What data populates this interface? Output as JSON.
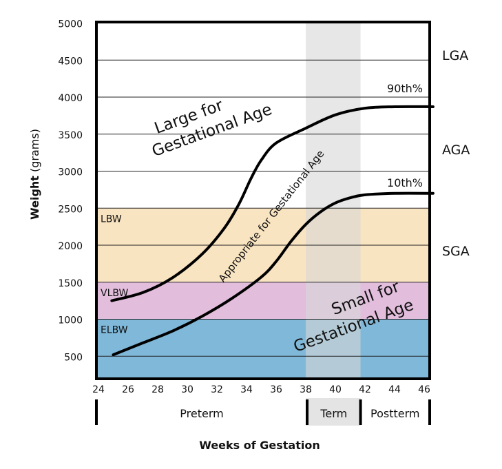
{
  "chart_data": {
    "type": "line",
    "xlabel": "Weeks of Gestation",
    "ylabel_bold": "Weight",
    "ylabel_unit": "(grams)",
    "xlim": [
      23.8,
      46.6
    ],
    "ylim": [
      195,
      5000
    ],
    "x_ticks": [
      24,
      26,
      28,
      30,
      32,
      34,
      36,
      38,
      40,
      42,
      44,
      46
    ],
    "y_ticks": [
      500,
      1000,
      1500,
      2000,
      2500,
      3000,
      3500,
      4000,
      4500,
      5000
    ],
    "grid": true,
    "weight_bands": [
      {
        "label": "ELBW",
        "from": 195,
        "to": 1000,
        "color": "#7fb8d8"
      },
      {
        "label": "VLBW",
        "from": 1000,
        "to": 1500,
        "color": "#e2bddc"
      },
      {
        "label": "LBW",
        "from": 1500,
        "to": 2500,
        "color": "#f9e4c1"
      }
    ],
    "term_band": {
      "from": 38,
      "to": 41.7,
      "color": "#e4e4e4"
    },
    "periods": [
      {
        "label": "Preterm",
        "from": 23.8,
        "to": 38
      },
      {
        "label": "Term",
        "from": 38,
        "to": 41.7
      },
      {
        "label": "Postterm",
        "from": 41.7,
        "to": 46.6
      }
    ],
    "series": [
      {
        "name": "90th%",
        "x": [
          24.9,
          27,
          29,
          31,
          32.5,
          33.5,
          34.3,
          35,
          36,
          38,
          40,
          42,
          44,
          46.6
        ],
        "y": [
          1250,
          1360,
          1560,
          1880,
          2230,
          2560,
          2900,
          3150,
          3380,
          3580,
          3760,
          3850,
          3870,
          3870
        ]
      },
      {
        "name": "10th%",
        "x": [
          25,
          27,
          29,
          31,
          33,
          35,
          36,
          37,
          38,
          39,
          40,
          41,
          42,
          44,
          46.6
        ],
        "y": [
          520,
          680,
          840,
          1040,
          1280,
          1570,
          1780,
          2050,
          2280,
          2450,
          2570,
          2640,
          2680,
          2700,
          2700
        ]
      }
    ],
    "region_labels": [
      {
        "lines": [
          "Large for",
          "Gestational Age"
        ]
      },
      {
        "lines": [
          "Appropriate for Gestational Age"
        ]
      },
      {
        "lines": [
          "Small for",
          "Gestational Age"
        ]
      }
    ],
    "right_labels": [
      "LGA",
      "AGA",
      "SGA"
    ]
  }
}
